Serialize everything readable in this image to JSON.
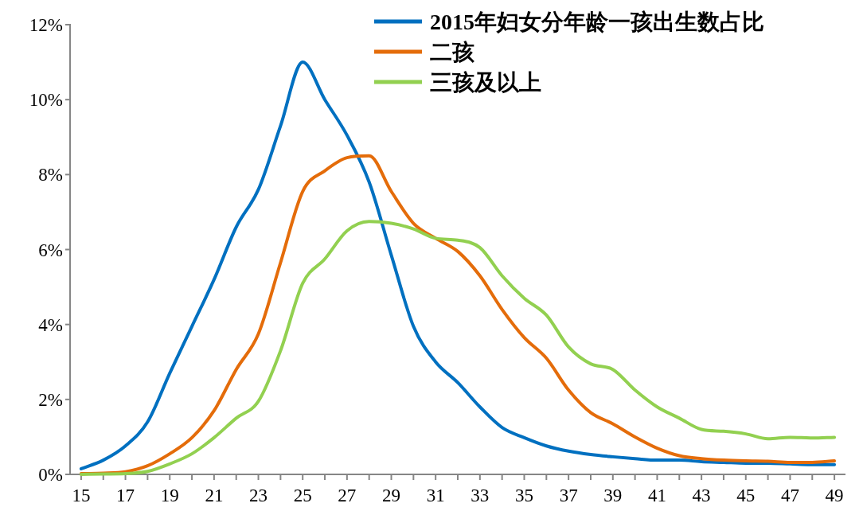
{
  "chart_data": {
    "type": "line",
    "legend": "top right",
    "marker": "none",
    "line_style": "solid",
    "x": [
      15,
      16,
      17,
      18,
      19,
      20,
      21,
      22,
      23,
      24,
      25,
      26,
      27,
      28,
      29,
      30,
      31,
      32,
      33,
      34,
      35,
      36,
      37,
      38,
      39,
      40,
      41,
      42,
      43,
      44,
      45,
      46,
      47,
      48,
      49
    ],
    "xlim": [
      14.5,
      49.5
    ],
    "xticks": [
      15,
      {
        "value": 16,
        "label": null
      },
      17,
      {
        "value": 18,
        "label": null
      },
      19,
      {
        "value": 20,
        "label": null
      },
      21,
      {
        "value": 22,
        "label": null
      },
      23,
      {
        "value": 24,
        "label": null
      },
      25,
      {
        "value": 26,
        "label": null
      },
      27,
      {
        "value": 28,
        "label": null
      },
      29,
      {
        "value": 30,
        "label": null
      },
      31,
      {
        "value": 32,
        "label": null
      },
      33,
      {
        "value": 34,
        "label": null
      },
      35,
      {
        "value": 36,
        "label": null
      },
      37,
      {
        "value": 38,
        "label": null
      },
      39,
      {
        "value": 40,
        "label": null
      },
      41,
      {
        "value": 42,
        "label": null
      },
      43,
      {
        "value": 44,
        "label": null
      },
      45,
      {
        "value": 46,
        "label": null
      },
      47,
      {
        "value": 48,
        "label": null
      },
      49
    ],
    "ylim": [
      0,
      12
    ],
    "yticks": [
      {
        "value": 0,
        "label": "0%"
      },
      {
        "value": 2,
        "label": "2%"
      },
      {
        "value": 4,
        "label": "4%"
      },
      {
        "value": 6,
        "label": "6%"
      },
      {
        "value": 8,
        "label": "8%"
      },
      {
        "value": 10,
        "label": "10%"
      },
      {
        "value": 12,
        "label": "12%"
      }
    ],
    "series": [
      {
        "name": "2015年妇女分年龄一孩出生数占比",
        "color": "#0070c0",
        "values": [
          0.15,
          0.38,
          0.76,
          1.4,
          2.7,
          3.95,
          5.2,
          6.6,
          7.6,
          9.3,
          11.0,
          10.0,
          9.05,
          7.8,
          5.85,
          3.95,
          3.0,
          2.45,
          1.8,
          1.25,
          0.98,
          0.76,
          0.62,
          0.53,
          0.47,
          0.42,
          0.38,
          0.38,
          0.34,
          0.32,
          0.3,
          0.3,
          0.28,
          0.26,
          0.26
        ]
      },
      {
        "name": "二孩",
        "color": "#e46c0a",
        "values": [
          0.02,
          0.03,
          0.07,
          0.23,
          0.55,
          0.98,
          1.7,
          2.8,
          3.75,
          5.65,
          7.55,
          8.1,
          8.45,
          8.5,
          7.55,
          6.7,
          6.3,
          5.95,
          5.3,
          4.4,
          3.65,
          3.1,
          2.25,
          1.65,
          1.35,
          1.0,
          0.7,
          0.5,
          0.42,
          0.38,
          0.36,
          0.35,
          0.32,
          0.32,
          0.36
        ]
      },
      {
        "name": "三孩及以上",
        "color": "#92d050",
        "values": [
          0,
          0.01,
          0.02,
          0.08,
          0.28,
          0.55,
          0.98,
          1.5,
          1.95,
          3.3,
          5.1,
          5.75,
          6.5,
          6.75,
          6.7,
          6.55,
          6.3,
          6.25,
          6.05,
          5.3,
          4.7,
          4.25,
          3.4,
          2.95,
          2.8,
          2.25,
          1.8,
          1.5,
          1.2,
          1.15,
          1.08,
          0.95,
          0.99,
          0.97,
          0.99
        ]
      }
    ]
  }
}
